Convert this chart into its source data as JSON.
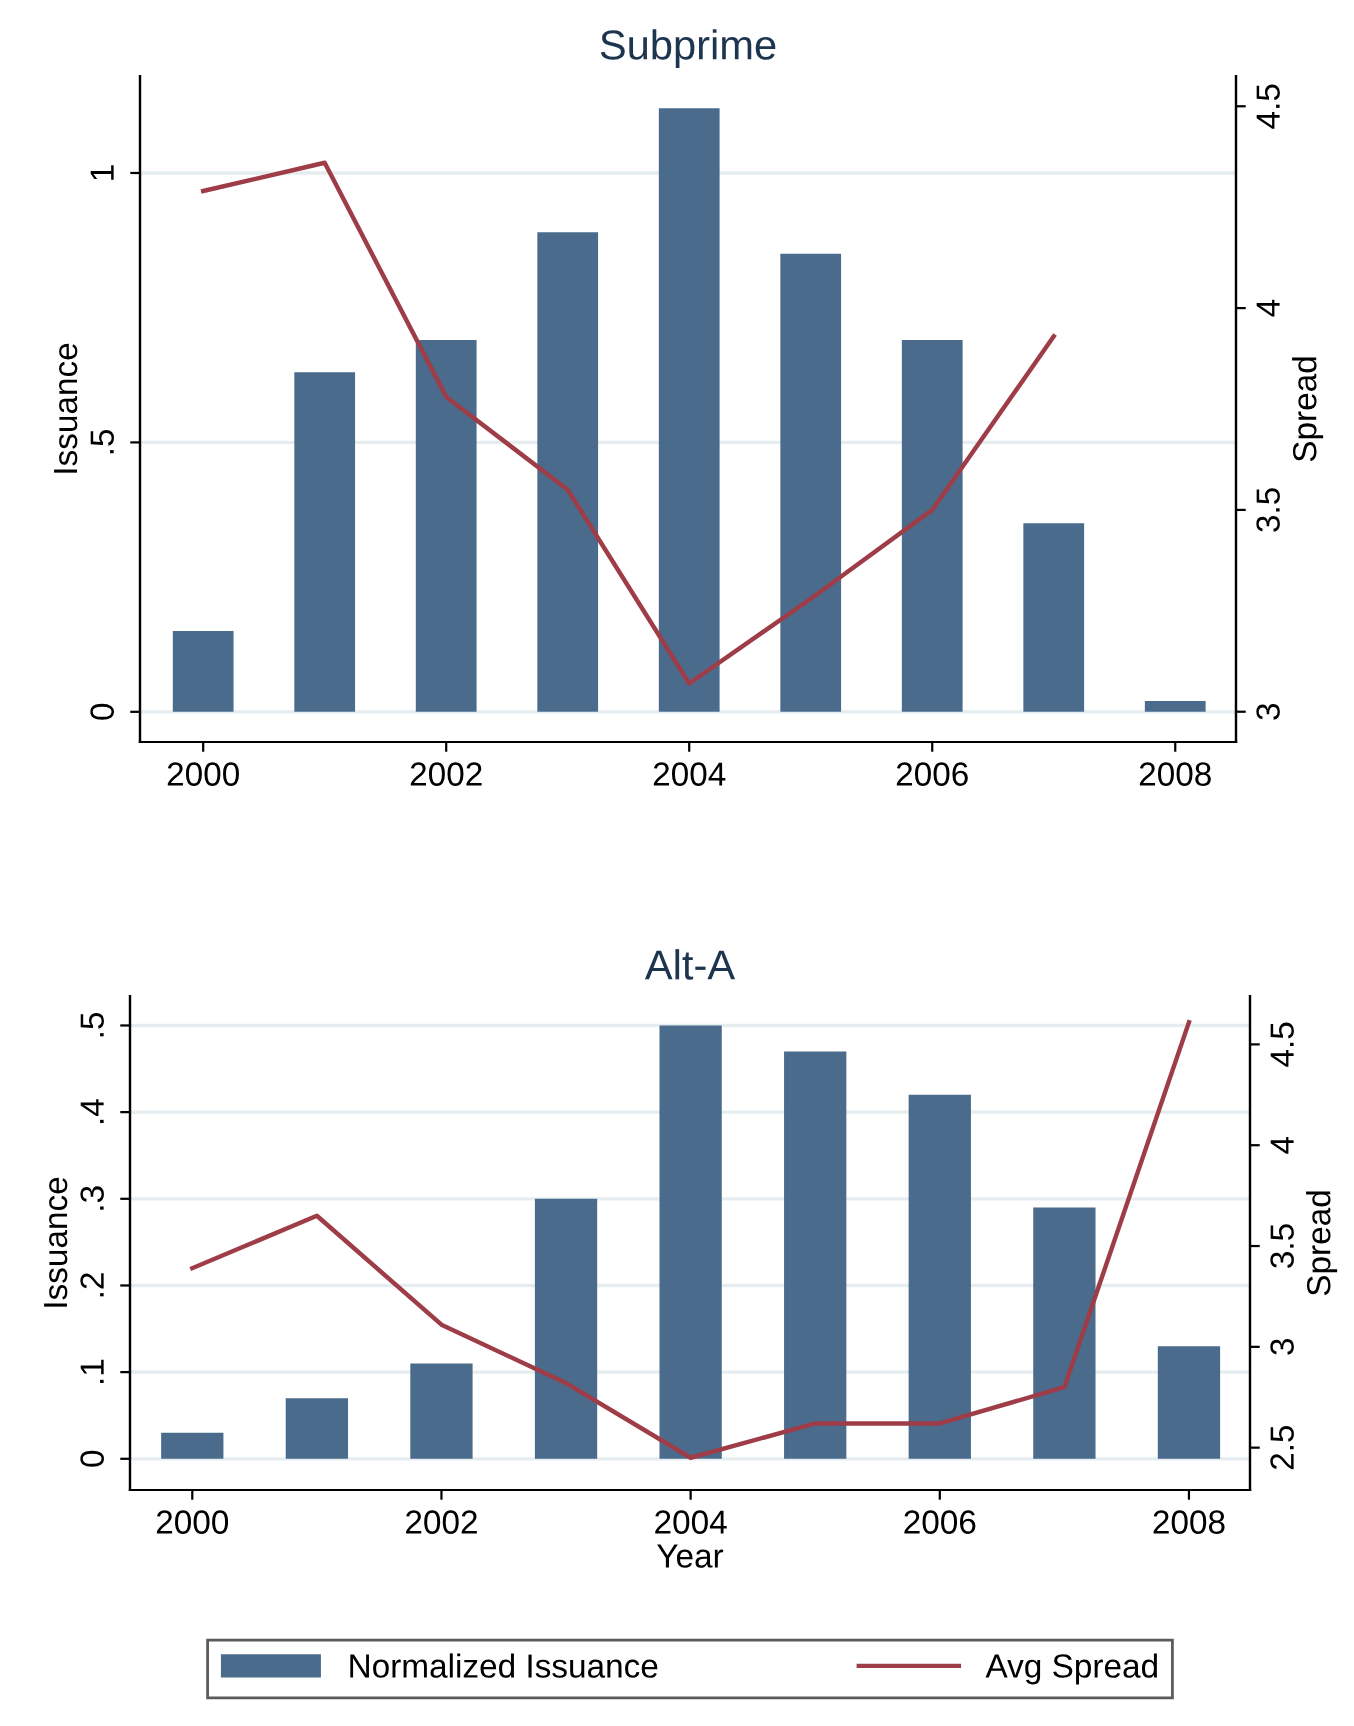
{
  "chart_data": [
    {
      "type": "bar",
      "title": "Subprime",
      "ylabel": "Issuance",
      "y2label": "Spread",
      "x": [
        2000,
        2001,
        2002,
        2003,
        2004,
        2005,
        2006,
        2007,
        2008
      ],
      "series": [
        {
          "color": "#4a6b8c",
          "values": [
            0.15,
            0.63,
            0.69,
            0.89,
            1.12,
            0.85,
            0.69,
            0.35,
            0.02
          ]
        },
        {
          "type": "line",
          "axis": "y2",
          "color": "#9e3d47",
          "values": [
            4.29,
            4.36,
            3.78,
            3.55,
            3.07,
            3.28,
            3.5,
            3.93,
            null
          ]
        }
      ],
      "xlim": [
        1999.48,
        2008.5
      ],
      "xticks": [
        2000,
        2002,
        2004,
        2006,
        2008
      ],
      "ylim": [
        -0.056,
        1.18
      ],
      "yticks": [
        0,
        {
          "value": 0.5,
          "label": ".5"
        },
        1
      ],
      "y2lim": [
        2.925,
        4.575
      ],
      "y2ticks": [
        3,
        3.5,
        4,
        4.5
      ],
      "grid": "y",
      "legend": false
    },
    {
      "type": "bar",
      "title": "Alt-A",
      "xlabel": "Year",
      "ylabel": "Issuance",
      "y2label": "Spread",
      "x": [
        2000,
        2001,
        2002,
        2003,
        2004,
        2005,
        2006,
        2007,
        2008
      ],
      "series": [
        {
          "name": "Normalized Issuance",
          "color": "#4a6b8c",
          "values": [
            0.03,
            0.07,
            0.11,
            0.3,
            0.5,
            0.47,
            0.42,
            0.29,
            0.13
          ]
        },
        {
          "name": "Avg Spread",
          "type": "line",
          "axis": "y2",
          "color": "#9e3d47",
          "values": [
            3.39,
            3.65,
            3.11,
            2.82,
            2.45,
            2.62,
            2.62,
            2.8,
            4.61
          ]
        }
      ],
      "xlim": [
        1999.5,
        2008.49
      ],
      "xticks": [
        2000,
        2002,
        2004,
        2006,
        2008
      ],
      "ylim": [
        -0.036,
        0.534
      ],
      "yticks": [
        0,
        {
          "value": 0.1,
          "label": ".1"
        },
        {
          "value": 0.2,
          "label": ".2"
        },
        {
          "value": 0.3,
          "label": ".3"
        },
        {
          "value": 0.4,
          "label": ".4"
        },
        {
          "value": 0.5,
          "label": ".5"
        }
      ],
      "y2lim": [
        2.29,
        4.74
      ],
      "y2ticks": [
        2.5,
        3,
        3.5,
        4,
        4.5
      ],
      "grid": "y",
      "legend": "bottom"
    }
  ]
}
